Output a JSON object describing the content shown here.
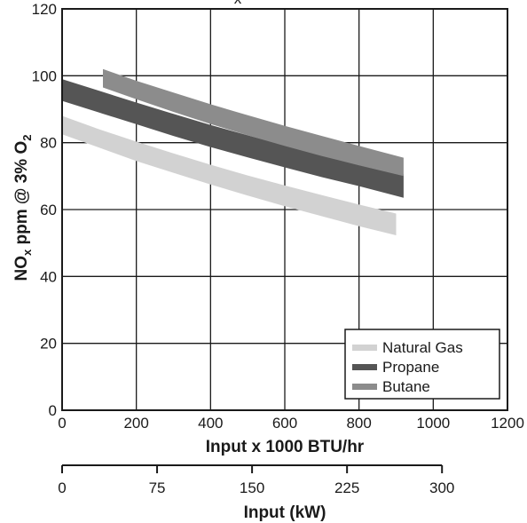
{
  "chart_data": {
    "type": "area",
    "title_fragment": "x",
    "xlabel": "Input x 1000 BTU/hr",
    "ylabel_main": "NO",
    "ylabel_sub1": "x",
    "ylabel_mid": " ppm @ 3% O",
    "ylabel_sub2": "2",
    "secondary_xlabel": "Input (kW)",
    "xlim": [
      0,
      1200
    ],
    "ylim": [
      0,
      120
    ],
    "x_ticks": [
      "0",
      "200",
      "400",
      "600",
      "800",
      "1000",
      "1200"
    ],
    "y_ticks": [
      "0",
      "20",
      "40",
      "60",
      "80",
      "100",
      "120"
    ],
    "secondary_x_ticks": [
      "0",
      "75",
      "150",
      "225",
      "300"
    ],
    "secondary_x_tick_values": [
      0,
      75,
      150,
      225,
      300
    ],
    "grid": true,
    "legend_position": "bottom-right",
    "series": [
      {
        "name": "Natural Gas",
        "color": "#d2d2d2",
        "x": [
          0,
          100,
          200,
          300,
          400,
          500,
          600,
          700,
          800,
          900
        ],
        "lower": [
          82.5,
          78.5,
          74.5,
          71,
          67.5,
          64.2,
          61,
          58,
          55,
          52.3
        ],
        "upper": [
          88,
          84,
          80.3,
          76.8,
          73.4,
          70.2,
          67.2,
          64.3,
          61.5,
          58.8
        ]
      },
      {
        "name": "Propane",
        "color": "#555555",
        "x": [
          0,
          100,
          200,
          300,
          400,
          500,
          600,
          700,
          800,
          920
        ],
        "lower": [
          92.5,
          89,
          85.5,
          82,
          78.7,
          75.6,
          72.6,
          69.7,
          67,
          63.5
        ],
        "upper": [
          99,
          95.5,
          92,
          88.6,
          85.3,
          82.2,
          79.2,
          76.3,
          73.5,
          70.5
        ]
      },
      {
        "name": "Butane",
        "color": "#8c8c8c",
        "x": [
          110,
          200,
          300,
          400,
          500,
          600,
          700,
          800,
          920
        ],
        "lower": [
          96.5,
          93,
          89.2,
          85.6,
          82.2,
          79,
          76,
          73.2,
          70
        ],
        "upper": [
          102,
          98.5,
          95,
          91.5,
          88.2,
          85,
          82,
          79,
          75.5
        ]
      }
    ]
  }
}
